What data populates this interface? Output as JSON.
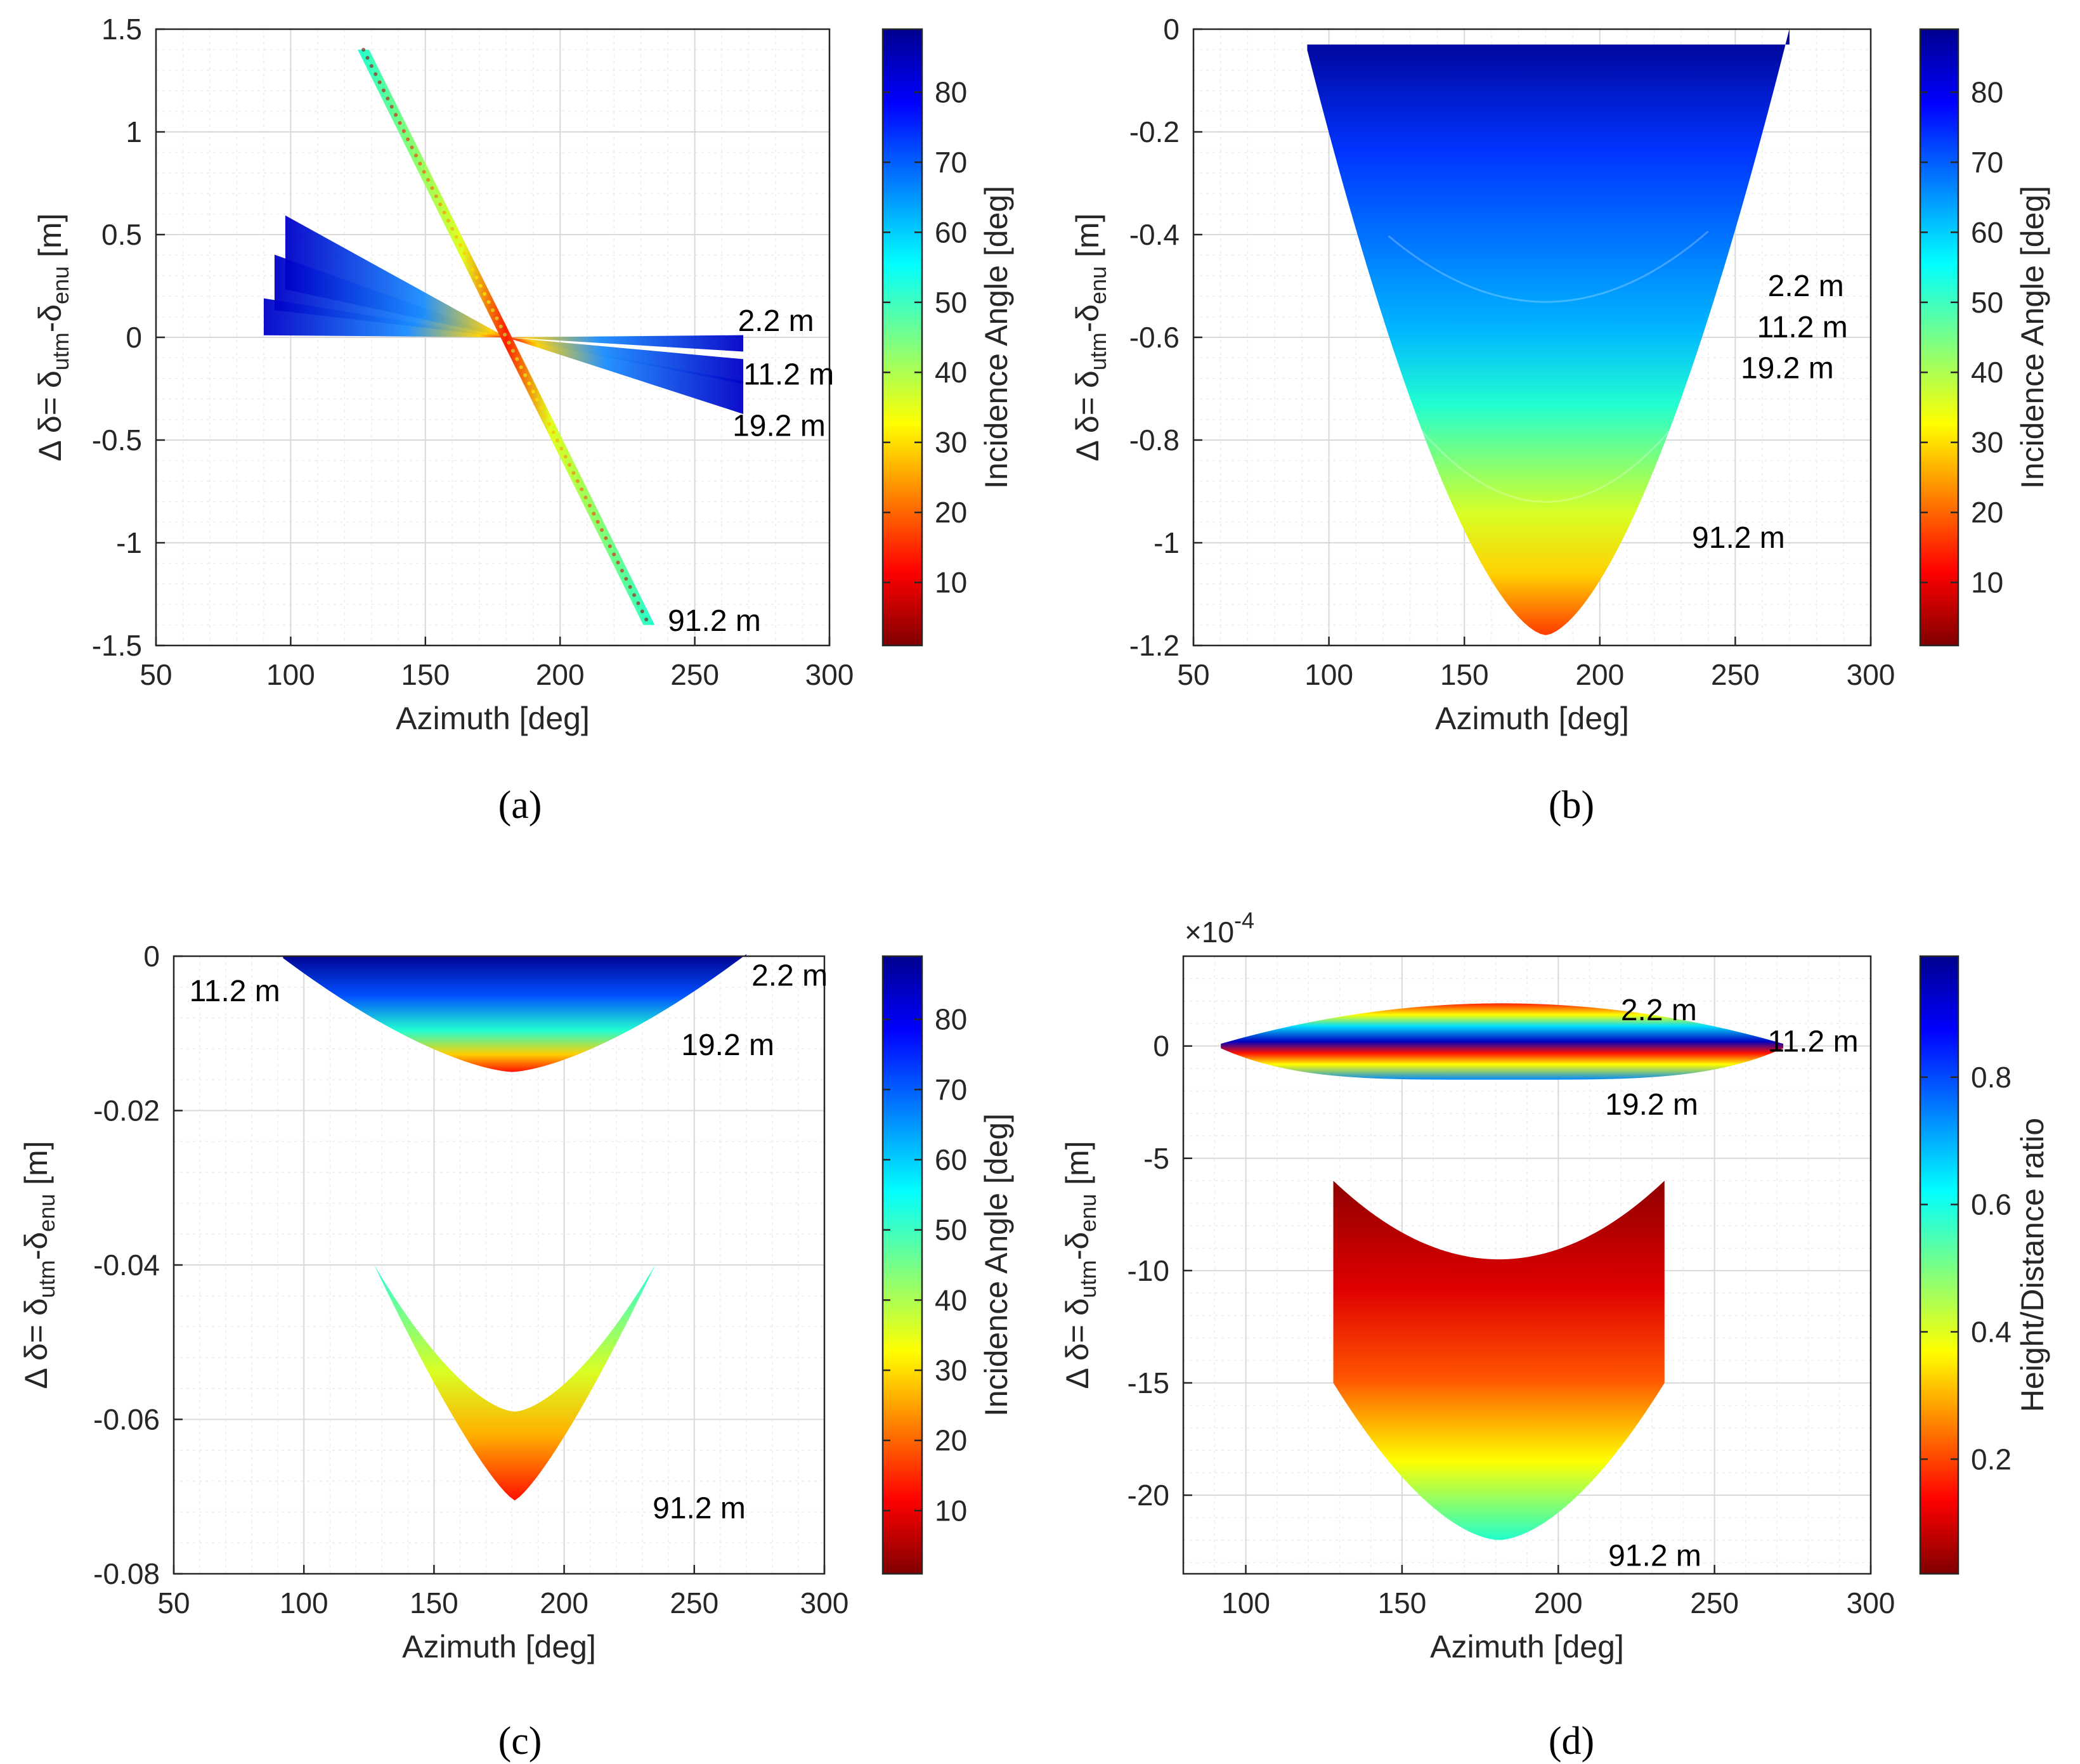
{
  "chart_data": [
    {
      "id": "a",
      "type": "scatter",
      "subcaption": "(a)",
      "xlabel": "Azimuth [deg]",
      "ylabel_parts": [
        "Δ δ= δ",
        "utm",
        "-δ",
        "enu",
        " [m]"
      ],
      "xlim": [
        50,
        300
      ],
      "ylim": [
        -1.5,
        1.5
      ],
      "xticks": [
        50,
        100,
        150,
        200,
        250,
        300
      ],
      "yticks": [
        -1.5,
        -1,
        -0.5,
        0,
        0.5,
        1,
        1.5
      ],
      "ytick_labels": [
        "-1.5",
        "-1",
        "-0.5",
        "0",
        "0.5",
        "1",
        "1.5"
      ],
      "colorbar": {
        "label": "Incidence Angle [deg]",
        "range": [
          1,
          89
        ],
        "ticks": [
          10,
          20,
          30,
          40,
          50,
          60,
          70,
          80
        ]
      },
      "series": [
        {
          "name": "2.2 m",
          "label_at": [
            266,
            0.08
          ],
          "shape": "fan",
          "amp": 0.03,
          "phase": 0,
          "dir": -1,
          "thick": 0.04
        },
        {
          "name": "11.2 m",
          "label_at": [
            268,
            -0.18
          ],
          "shape": "fan",
          "amp": 0.17,
          "phase": 0,
          "dir": -1,
          "thick": 0.06
        },
        {
          "name": "19.2 m",
          "label_at": [
            264,
            -0.43
          ],
          "shape": "fan",
          "amp": 0.3,
          "phase": 0,
          "dir": -1,
          "thick": 0.08
        },
        {
          "name": "91.2 m",
          "label_at": [
            240,
            -1.38
          ],
          "shape": "line",
          "amp": 1.4,
          "az_range": [
            127,
            233
          ],
          "thick": 0.08
        }
      ]
    },
    {
      "id": "b",
      "type": "scatter",
      "subcaption": "(b)",
      "xlabel": "Azimuth [deg]",
      "ylabel_parts": [
        "Δ δ= δ",
        "utm",
        "-δ",
        "enu",
        " [m]"
      ],
      "xlim": [
        50,
        300
      ],
      "ylim": [
        -1.2,
        0
      ],
      "xticks": [
        50,
        100,
        150,
        200,
        250,
        300
      ],
      "yticks": [
        -1.2,
        -1,
        -0.8,
        -0.6,
        -0.4,
        -0.2,
        0
      ],
      "ytick_labels": [
        "-1.2",
        "-1",
        "-0.8",
        "-0.6",
        "-0.4",
        "-0.2",
        "0"
      ],
      "colorbar": {
        "label": "Incidence Angle [deg]",
        "range": [
          1,
          89
        ],
        "ticks": [
          10,
          20,
          30,
          40,
          50,
          60,
          70,
          80
        ]
      },
      "series": [
        {
          "name": "2.2 m",
          "label_at": [
            262,
            -0.5
          ]
        },
        {
          "name": "11.2 m",
          "label_at": [
            258,
            -0.58
          ]
        },
        {
          "name": "19.2 m",
          "label_at": [
            252,
            -0.66
          ]
        },
        {
          "name": "91.2 m",
          "label_at": [
            234,
            -0.99
          ]
        }
      ],
      "envelope": {
        "top": -0.03,
        "bottom_min": -1.18,
        "az_range": [
          92,
          270
        ]
      }
    },
    {
      "id": "c",
      "type": "scatter",
      "subcaption": "(c)",
      "xlabel": "Azimuth [deg]",
      "ylabel_parts": [
        "Δ δ= δ",
        "utm",
        "-δ",
        "enu",
        " [m]"
      ],
      "xlim": [
        50,
        300
      ],
      "ylim": [
        -0.08,
        0
      ],
      "xticks": [
        50,
        100,
        150,
        200,
        250,
        300
      ],
      "yticks": [
        -0.08,
        -0.06,
        -0.04,
        -0.02,
        0
      ],
      "ytick_labels": [
        "-0.08",
        "-0.06",
        "-0.04",
        "-0.02",
        "0"
      ],
      "colorbar": {
        "label": "Incidence Angle [deg]",
        "range": [
          1,
          89
        ],
        "ticks": [
          10,
          20,
          30,
          40,
          50,
          60,
          70,
          80
        ]
      },
      "series": [
        {
          "name": "2.2 m",
          "label_at": [
            272,
            -0.0025
          ]
        },
        {
          "name": "11.2 m",
          "label_at": [
            56,
            -0.0045
          ]
        },
        {
          "name": "19.2 m",
          "label_at": [
            245,
            -0.0115
          ]
        },
        {
          "name": "91.2 m",
          "label_at": [
            234,
            -0.0715
          ]
        }
      ],
      "shapes": {
        "upper": {
          "top": 0,
          "bottom_min": -0.015,
          "az_range": [
            92,
            270
          ]
        },
        "lower": {
          "top": -0.04,
          "bottom_min": -0.0705,
          "inner_min": -0.059,
          "az_range": [
            127,
            235
          ]
        }
      }
    },
    {
      "id": "d",
      "type": "scatter",
      "subcaption": "(d)",
      "xlabel": "Azimuth [deg]",
      "ylabel_parts": [
        "Δ δ= δ",
        "utm",
        "-δ",
        "enu",
        " [m]"
      ],
      "exponent_label": "×10",
      "exponent_power": "-4",
      "xlim": [
        80,
        300
      ],
      "ylim": [
        -23.5,
        4
      ],
      "xticks": [
        100,
        150,
        200,
        250,
        300
      ],
      "yticks": [
        -20,
        -15,
        -10,
        -5,
        0
      ],
      "ytick_labels": [
        "-20",
        "-15",
        "-10",
        "-5",
        "0"
      ],
      "colorbar": {
        "label": "Height/Distance ratio",
        "range": [
          0.02,
          0.99
        ],
        "ticks": [
          0.2,
          0.4,
          0.6,
          0.8
        ],
        "tick_labels": [
          "0.2",
          "0.4",
          "0.6",
          "0.8"
        ]
      },
      "series": [
        {
          "name": "2.2 m",
          "label_at": [
            220,
            1.6
          ]
        },
        {
          "name": "11.2 m",
          "label_at": [
            267,
            0.2
          ]
        },
        {
          "name": "19.2 m",
          "label_at": [
            215,
            -2.6
          ]
        },
        {
          "name": "91.2 m",
          "label_at": [
            216,
            -22.7
          ]
        }
      ],
      "shapes": {
        "lens": {
          "az_range": [
            92,
            272
          ],
          "top": 1.8,
          "bottom": -1.4
        },
        "bowl": {
          "az_range": [
            128,
            234
          ],
          "edge_top": -6,
          "mid_top": -9.5,
          "bottom_min": -22
        }
      }
    }
  ]
}
